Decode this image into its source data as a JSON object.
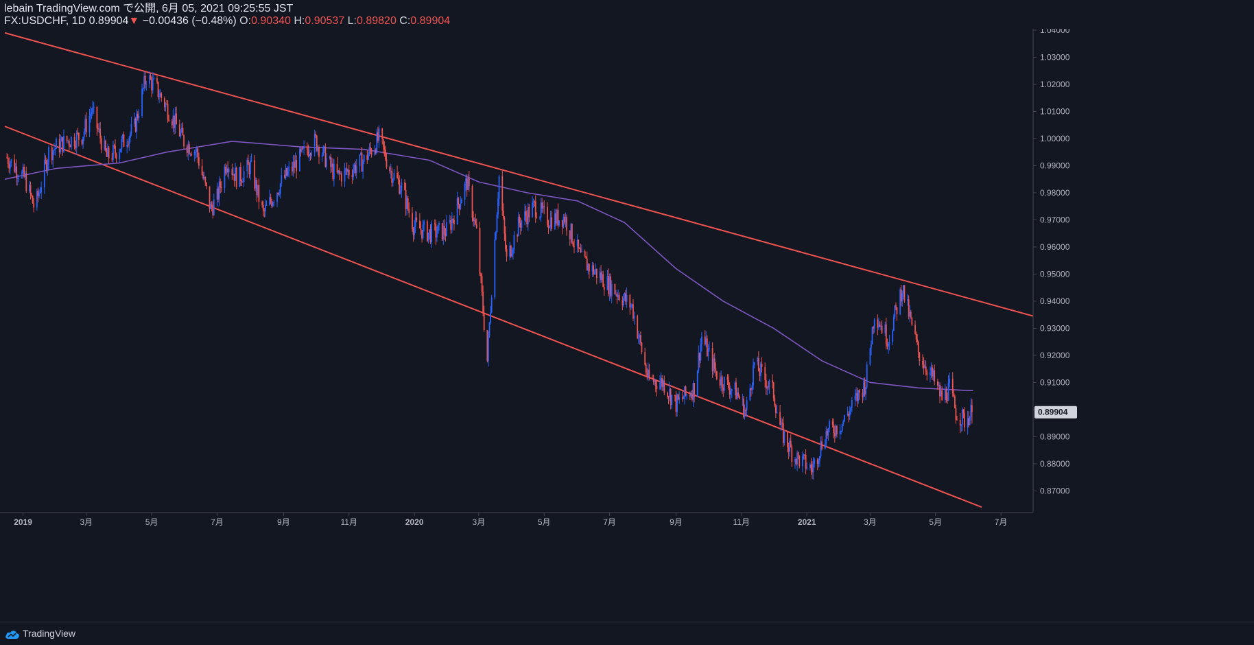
{
  "header": {
    "publish_line": "lebain TradingView.com で公開, 6月 05, 2021 09:25:55 JST",
    "symbol": "FX:USDCHF, 1D",
    "last": "0.89904",
    "arrow": "▼",
    "change": "−0.00436 (−0.48%)",
    "o_label": "O:",
    "o_value": "0.90340",
    "h_label": "H:",
    "h_value": "0.90537",
    "l_label": "L:",
    "l_value": "0.89820",
    "c_label": "C:",
    "c_value": "0.89904"
  },
  "footer": {
    "brand": "TradingView",
    "logo_icon": "tradingview-cloud-icon"
  },
  "colors": {
    "background": "#131722",
    "up": "#2962ff",
    "down": "#ef5350",
    "trendline": "#ef5350",
    "moving_average": "#7e57c2",
    "axis_text": "#b2b5be",
    "axis_line": "#434651"
  },
  "chart_data": {
    "type": "candlestick",
    "symbol": "FX:USDCHF",
    "interval": "1D",
    "ylim": [
      0.862,
      1.042
    ],
    "xlim": [
      "2018-12-15",
      "2021-07-31"
    ],
    "y_ticks": [
      "1.04000",
      "1.03000",
      "1.02000",
      "1.01000",
      "1.00000",
      "0.99000",
      "0.98000",
      "0.97000",
      "0.96000",
      "0.95000",
      "0.94000",
      "0.93000",
      "0.92000",
      "0.91000",
      "0.90000",
      "0.89000",
      "0.88000",
      "0.87000"
    ],
    "x_ticks": [
      {
        "date": "2019-01-01",
        "label": "2019"
      },
      {
        "date": "2019-03-01",
        "label": "3月"
      },
      {
        "date": "2019-05-01",
        "label": "5月"
      },
      {
        "date": "2019-07-01",
        "label": "7月"
      },
      {
        "date": "2019-09-01",
        "label": "9月"
      },
      {
        "date": "2019-11-01",
        "label": "11月"
      },
      {
        "date": "2020-01-01",
        "label": "2020"
      },
      {
        "date": "2020-03-01",
        "label": "3月"
      },
      {
        "date": "2020-05-01",
        "label": "5月"
      },
      {
        "date": "2020-07-01",
        "label": "7月"
      },
      {
        "date": "2020-09-01",
        "label": "9月"
      },
      {
        "date": "2020-11-01",
        "label": "11月"
      },
      {
        "date": "2021-01-01",
        "label": "2021"
      },
      {
        "date": "2021-03-01",
        "label": "3月"
      },
      {
        "date": "2021-05-01",
        "label": "5月"
      },
      {
        "date": "2021-07-01",
        "label": "7月"
      }
    ],
    "last_price": 0.89904,
    "last_price_label": "0.89904",
    "price_path": [
      [
        "2018-12-17",
        0.993
      ],
      [
        "2019-01-03",
        0.985
      ],
      [
        "2019-01-12",
        0.974
      ],
      [
        "2019-01-25",
        0.995
      ],
      [
        "2019-02-10",
        0.999
      ],
      [
        "2019-02-25",
        1.001
      ],
      [
        "2019-03-06",
        1.0105
      ],
      [
        "2019-03-20",
        0.993
      ],
      [
        "2019-03-28",
        0.995
      ],
      [
        "2019-04-15",
        1.004
      ],
      [
        "2019-04-26",
        1.023
      ],
      [
        "2019-05-06",
        1.018
      ],
      [
        "2019-05-20",
        1.008
      ],
      [
        "2019-05-31",
        0.999
      ],
      [
        "2019-06-12",
        0.995
      ],
      [
        "2019-06-25",
        0.974
      ],
      [
        "2019-07-01",
        0.978
      ],
      [
        "2019-07-10",
        0.992
      ],
      [
        "2019-07-20",
        0.985
      ],
      [
        "2019-08-01",
        0.99
      ],
      [
        "2019-08-13",
        0.972
      ],
      [
        "2019-08-30",
        0.984
      ],
      [
        "2019-09-15",
        0.992
      ],
      [
        "2019-09-25",
        0.997
      ],
      [
        "2019-10-01",
        0.999
      ],
      [
        "2019-10-20",
        0.986
      ],
      [
        "2019-11-01",
        0.988
      ],
      [
        "2019-11-15",
        0.992
      ],
      [
        "2019-11-29",
        1.0
      ],
      [
        "2019-12-10",
        0.988
      ],
      [
        "2019-12-20",
        0.982
      ],
      [
        "2019-12-31",
        0.968
      ],
      [
        "2020-01-15",
        0.965
      ],
      [
        "2020-02-01",
        0.966
      ],
      [
        "2020-02-19",
        0.984
      ],
      [
        "2020-02-28",
        0.965
      ],
      [
        "2020-03-09",
        0.918
      ],
      [
        "2020-03-13",
        0.945
      ],
      [
        "2020-03-20",
        0.986
      ],
      [
        "2020-03-27",
        0.955
      ],
      [
        "2020-04-08",
        0.969
      ],
      [
        "2020-04-22",
        0.975
      ],
      [
        "2020-05-05",
        0.97
      ],
      [
        "2020-05-20",
        0.971
      ],
      [
        "2020-06-05",
        0.955
      ],
      [
        "2020-06-20",
        0.95
      ],
      [
        "2020-07-06",
        0.944
      ],
      [
        "2020-07-22",
        0.938
      ],
      [
        "2020-08-06",
        0.911
      ],
      [
        "2020-08-20",
        0.91
      ],
      [
        "2020-09-01",
        0.902
      ],
      [
        "2020-09-18",
        0.908
      ],
      [
        "2020-09-25",
        0.927
      ],
      [
        "2020-10-10",
        0.912
      ],
      [
        "2020-10-28",
        0.906
      ],
      [
        "2020-11-05",
        0.899
      ],
      [
        "2020-11-13",
        0.917
      ],
      [
        "2020-11-25",
        0.91
      ],
      [
        "2020-12-01",
        0.906
      ],
      [
        "2020-12-08",
        0.892
      ],
      [
        "2020-12-20",
        0.883
      ],
      [
        "2021-01-06",
        0.878
      ],
      [
        "2021-01-18",
        0.891
      ],
      [
        "2021-02-03",
        0.895
      ],
      [
        "2021-02-25",
        0.91
      ],
      [
        "2021-03-05",
        0.936
      ],
      [
        "2021-03-18",
        0.926
      ],
      [
        "2021-03-31",
        0.945
      ],
      [
        "2021-04-15",
        0.921
      ],
      [
        "2021-04-28",
        0.912
      ],
      [
        "2021-05-07",
        0.904
      ],
      [
        "2021-05-14",
        0.908
      ],
      [
        "2021-05-20",
        0.899
      ],
      [
        "2021-05-28",
        0.896
      ],
      [
        "2021-06-04",
        0.899
      ]
    ],
    "moving_average": [
      [
        "2018-12-15",
        0.985
      ],
      [
        "2019-02-01",
        0.989
      ],
      [
        "2019-04-01",
        0.991
      ],
      [
        "2019-05-15",
        0.995
      ],
      [
        "2019-07-15",
        0.999
      ],
      [
        "2019-09-15",
        0.997
      ],
      [
        "2019-11-15",
        0.996
      ],
      [
        "2020-01-15",
        0.992
      ],
      [
        "2020-03-01",
        0.984
      ],
      [
        "2020-04-15",
        0.98
      ],
      [
        "2020-06-01",
        0.977
      ],
      [
        "2020-07-15",
        0.969
      ],
      [
        "2020-09-01",
        0.952
      ],
      [
        "2020-10-15",
        0.94
      ],
      [
        "2020-12-01",
        0.93
      ],
      [
        "2021-01-15",
        0.918
      ],
      [
        "2021-03-01",
        0.91
      ],
      [
        "2021-04-15",
        0.908
      ],
      [
        "2021-06-01",
        0.907
      ],
      [
        "2021-06-05",
        0.907
      ]
    ],
    "trendlines": [
      {
        "from": [
          "2018-12-15",
          1.039
        ],
        "to": [
          "2021-07-31",
          0.9345
        ]
      },
      {
        "from": [
          "2018-12-15",
          1.0045
        ],
        "to": [
          "2021-06-13",
          0.864
        ]
      }
    ]
  }
}
